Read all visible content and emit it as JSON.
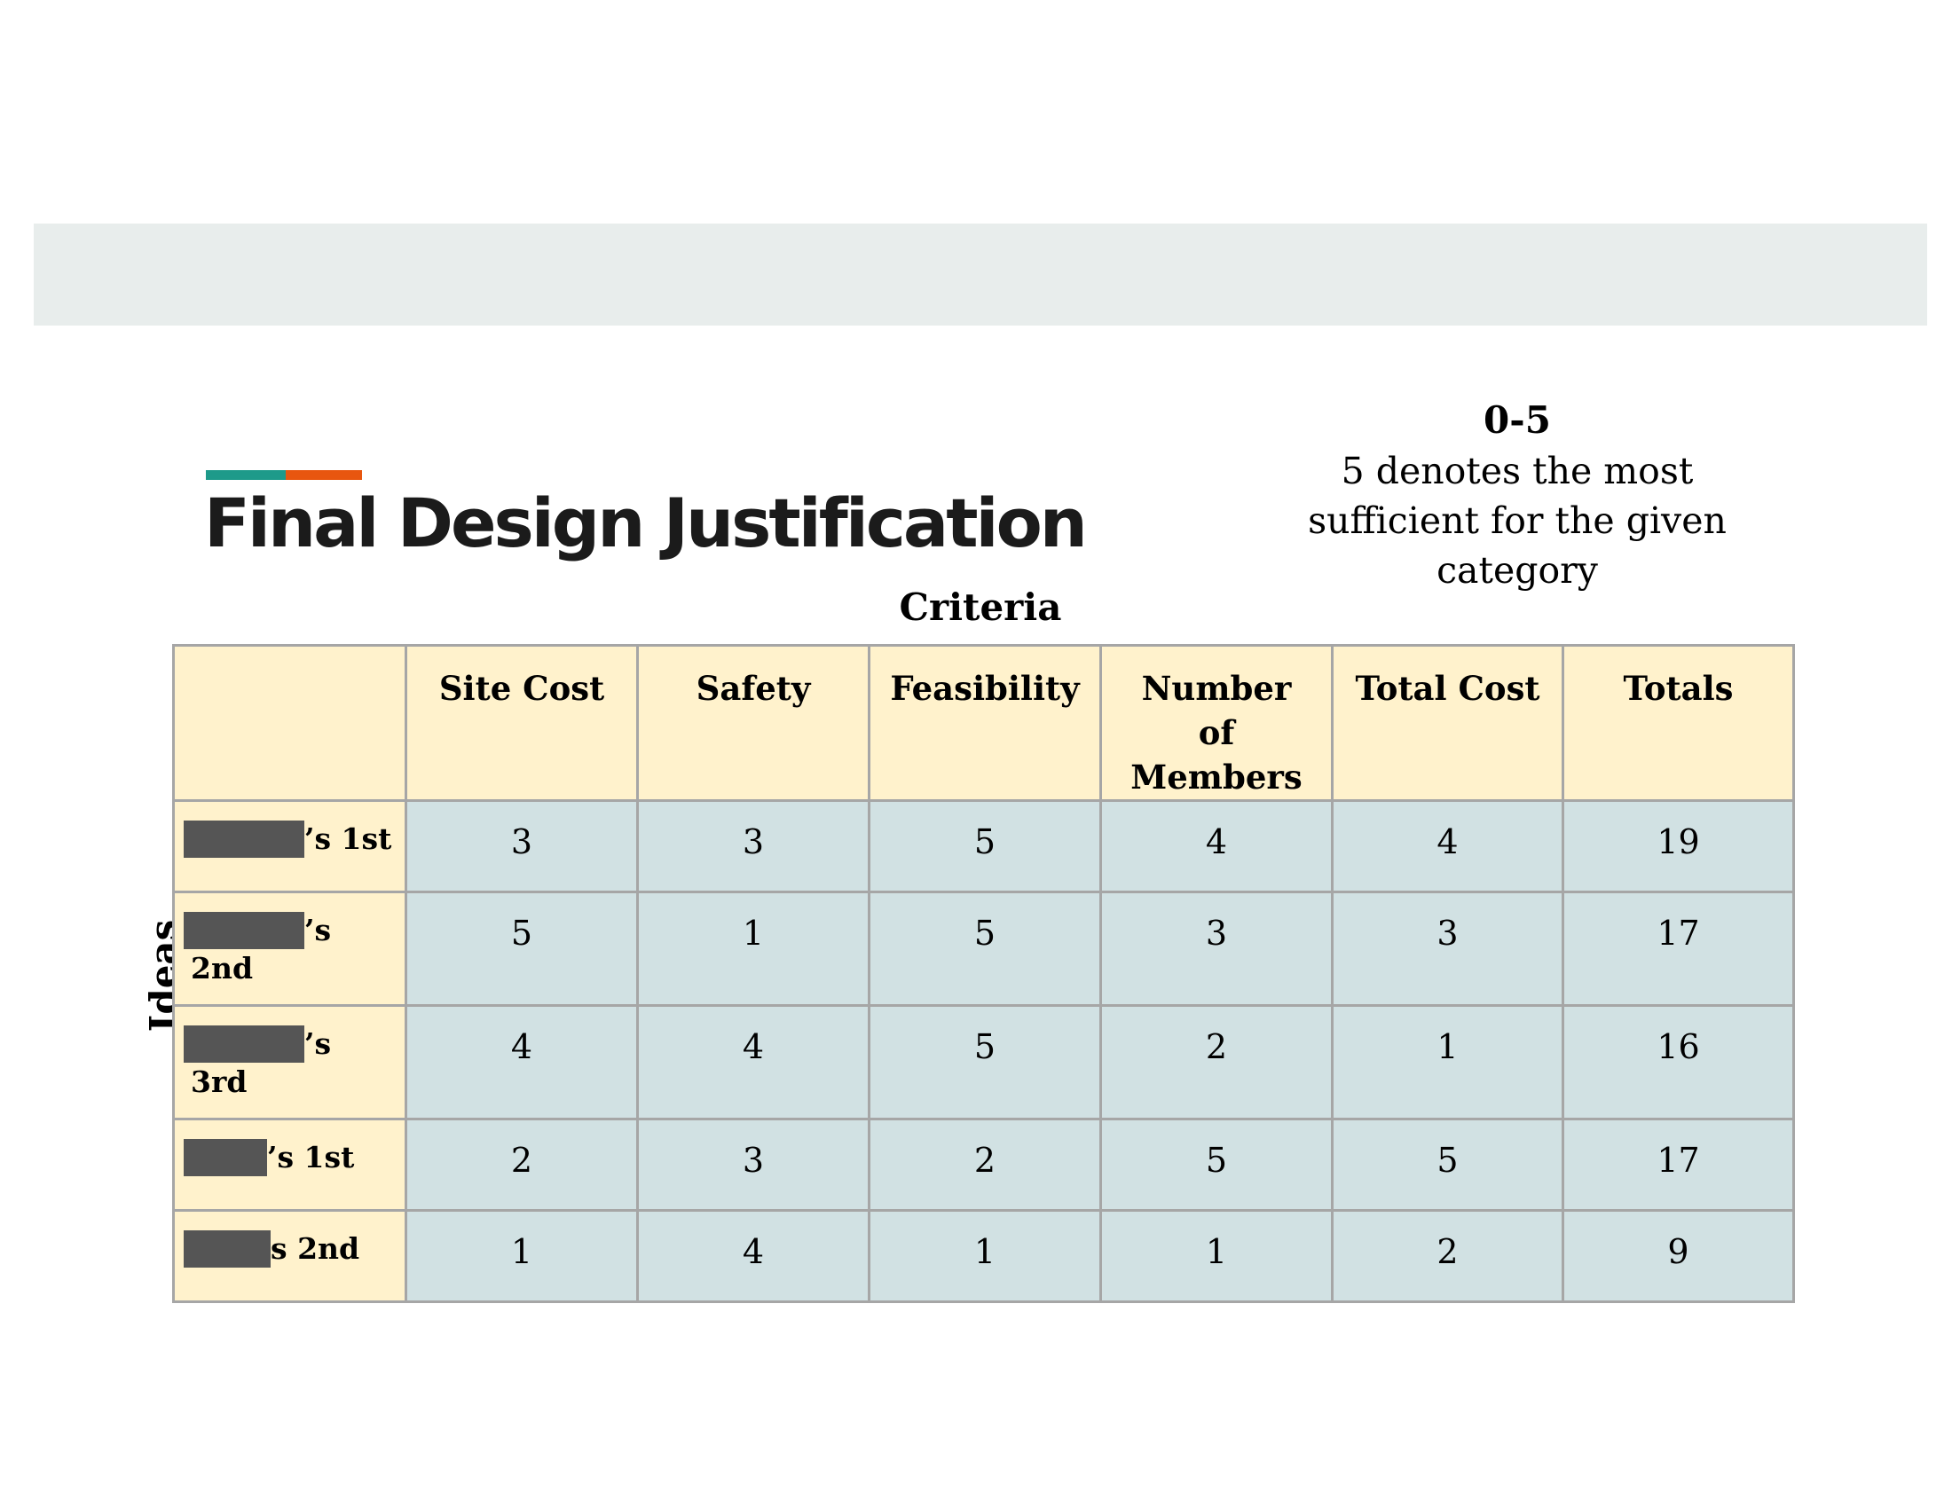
{
  "slide": {
    "title": "Final Design Justification",
    "scale_range": "0-5",
    "scale_note_lines": [
      "5 denotes the most",
      "sufficient for the given",
      "category"
    ],
    "criteria_label": "Criteria",
    "ideas_label": "Ideas",
    "colors": {
      "accent_teal": "#1e9a8a",
      "accent_orange": "#e8560f",
      "header_fill": "#fff2cc",
      "cell_fill": "#d1e1e3",
      "band": "#e8edec"
    }
  },
  "table": {
    "corner": "",
    "columns": [
      "Site Cost",
      "Safety",
      "Feasibility",
      "Number of Members",
      "Total Cost",
      "Totals"
    ],
    "rows": [
      {
        "label_line1": "’s 1st",
        "label_line2": "",
        "values": [
          "3",
          "3",
          "5",
          "4",
          "4",
          "19"
        ]
      },
      {
        "label_line1": "’s",
        "label_line2": "2nd",
        "values": [
          "5",
          "1",
          "5",
          "3",
          "3",
          "17"
        ]
      },
      {
        "label_line1": "’s",
        "label_line2": "3rd",
        "values": [
          "4",
          "4",
          "5",
          "2",
          "1",
          "16"
        ]
      },
      {
        "label_line1": "’s 1st",
        "label_line2": "",
        "values": [
          "2",
          "3",
          "2",
          "5",
          "5",
          "17"
        ]
      },
      {
        "label_line1": "s 2nd",
        "label_line2": "",
        "values": [
          "1",
          "4",
          "1",
          "1",
          "2",
          "9"
        ]
      }
    ]
  }
}
